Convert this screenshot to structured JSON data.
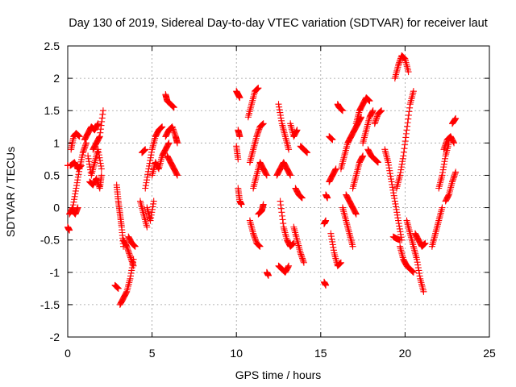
{
  "chart_data": {
    "type": "scatter",
    "title": "Day 130 of 2019, Sidereal Day-to-day VTEC variation (SDTVAR) for receiver laut",
    "xlabel": "GPS time / hours",
    "ylabel": "SDTVAR / TECUs",
    "xlim": [
      0,
      25
    ],
    "ylim": [
      -2,
      2.5
    ],
    "xticks": [
      0,
      5,
      10,
      15,
      20,
      25
    ],
    "yticks": [
      -2,
      -1.5,
      -1,
      -0.5,
      0,
      0.5,
      1,
      1.5,
      2,
      2.5
    ],
    "grid": true,
    "marker": "+",
    "color": "#ff0000",
    "segments": [
      {
        "x": [
          0.0,
          0.0
        ],
        "y": [
          0.65,
          0.65
        ]
      },
      {
        "x": [
          0.0,
          0.1
        ],
        "y": [
          -0.3,
          -0.35
        ]
      },
      {
        "x": [
          0.1,
          0.3,
          0.5,
          0.7,
          0.9,
          1.1
        ],
        "y": [
          -0.1,
          0.0,
          0.3,
          0.6,
          0.85,
          1.0
        ]
      },
      {
        "x": [
          0.2,
          0.35,
          0.5,
          0.7
        ],
        "y": [
          0.9,
          1.1,
          1.15,
          1.1
        ]
      },
      {
        "x": [
          0.15,
          0.4,
          0.6,
          0.8
        ],
        "y": [
          0.65,
          0.7,
          0.6,
          0.65
        ]
      },
      {
        "x": [
          0.3,
          0.45,
          0.6
        ],
        "y": [
          -0.05,
          -0.1,
          0.0
        ]
      },
      {
        "x": [
          1.0,
          1.2,
          1.4,
          1.6,
          1.8
        ],
        "y": [
          1.05,
          1.15,
          1.25,
          1.2,
          1.3
        ]
      },
      {
        "x": [
          1.2,
          1.4,
          1.6,
          1.8,
          2.0
        ],
        "y": [
          0.8,
          0.5,
          0.7,
          0.9,
          0.6
        ]
      },
      {
        "x": [
          1.3,
          1.5,
          1.7,
          1.9,
          2.0
        ],
        "y": [
          0.4,
          0.35,
          0.45,
          0.3,
          0.5
        ]
      },
      {
        "x": [
          1.5,
          1.7,
          1.9,
          2.1
        ],
        "y": [
          0.9,
          1.0,
          1.1,
          1.5
        ]
      },
      {
        "x": [
          2.8,
          3.0
        ],
        "y": [
          -1.2,
          -1.25
        ]
      },
      {
        "x": [
          2.9,
          3.0,
          3.1,
          3.2,
          3.3
        ],
        "y": [
          0.35,
          0.1,
          -0.1,
          -0.3,
          -0.6
        ]
      },
      {
        "x": [
          3.1,
          3.3,
          3.5,
          3.7,
          3.9
        ],
        "y": [
          -1.5,
          -1.4,
          -1.3,
          -1.1,
          -0.8
        ]
      },
      {
        "x": [
          3.3,
          3.5,
          3.7,
          3.9
        ],
        "y": [
          -0.5,
          -0.6,
          -0.75,
          -0.9
        ]
      },
      {
        "x": [
          3.6,
          3.8,
          4.0
        ],
        "y": [
          -0.45,
          -0.55,
          -0.6
        ]
      },
      {
        "x": [
          4.3,
          4.5,
          4.7
        ],
        "y": [
          0.1,
          -0.1,
          -0.3
        ]
      },
      {
        "x": [
          4.4,
          4.6
        ],
        "y": [
          0.85,
          0.9
        ]
      },
      {
        "x": [
          4.6,
          4.8,
          5.0,
          5.2,
          5.4,
          5.6
        ],
        "y": [
          0.3,
          0.6,
          0.9,
          1.1,
          1.2,
          1.25
        ]
      },
      {
        "x": [
          4.7,
          4.9,
          5.1
        ],
        "y": [
          0.0,
          -0.2,
          0.1
        ]
      },
      {
        "x": [
          5.0,
          5.2,
          5.4,
          5.6,
          5.8,
          6.0
        ],
        "y": [
          0.5,
          0.7,
          0.6,
          0.8,
          0.9,
          1.0
        ]
      },
      {
        "x": [
          5.8,
          5.9,
          6.1,
          6.3
        ],
        "y": [
          1.75,
          1.65,
          1.6,
          1.55
        ]
      },
      {
        "x": [
          5.8,
          6.0,
          6.2,
          6.4,
          6.5
        ],
        "y": [
          1.1,
          1.2,
          1.25,
          1.1,
          1.0
        ]
      },
      {
        "x": [
          5.9,
          6.1,
          6.3,
          6.5
        ],
        "y": [
          0.8,
          0.7,
          0.6,
          0.5
        ]
      },
      {
        "x": [
          10.0,
          10.1,
          10.2
        ],
        "y": [
          1.8,
          1.75,
          1.7
        ]
      },
      {
        "x": [
          10.0,
          10.1
        ],
        "y": [
          0.95,
          0.75
        ]
      },
      {
        "x": [
          10.1,
          10.2,
          10.3
        ],
        "y": [
          0.3,
          0.1,
          0.05
        ]
      },
      {
        "x": [
          10.1,
          10.2
        ],
        "y": [
          1.2,
          1.1
        ]
      },
      {
        "x": [
          10.7,
          10.9,
          11.1,
          11.3
        ],
        "y": [
          1.4,
          1.6,
          1.8,
          1.85
        ]
      },
      {
        "x": [
          10.8,
          11.0,
          11.2,
          11.4,
          11.6
        ],
        "y": [
          0.7,
          0.9,
          1.1,
          1.25,
          1.3
        ]
      },
      {
        "x": [
          10.8,
          11.0,
          11.2,
          11.4
        ],
        "y": [
          -0.2,
          -0.4,
          -0.55,
          -0.6
        ]
      },
      {
        "x": [
          11.0,
          11.2,
          11.4,
          11.6,
          11.8
        ],
        "y": [
          0.3,
          0.5,
          0.7,
          0.6,
          0.5
        ]
      },
      {
        "x": [
          11.3,
          11.5,
          11.6
        ],
        "y": [
          -0.1,
          -0.05,
          0.05
        ]
      },
      {
        "x": [
          11.8,
          11.9
        ],
        "y": [
          -1.0,
          -1.05
        ]
      },
      {
        "x": [
          12.5,
          12.7,
          12.9,
          13.1
        ],
        "y": [
          1.6,
          1.3,
          1.1,
          0.9
        ]
      },
      {
        "x": [
          12.4,
          12.6,
          12.8,
          13.0,
          13.2
        ],
        "y": [
          0.5,
          0.6,
          0.7,
          0.6,
          0.5
        ]
      },
      {
        "x": [
          12.5,
          12.7,
          12.9,
          13.1
        ],
        "y": [
          -0.9,
          -0.95,
          -1.0,
          -0.9
        ]
      },
      {
        "x": [
          12.6,
          12.8,
          13.0,
          13.2,
          13.4
        ],
        "y": [
          0.1,
          -0.3,
          -0.5,
          -0.6,
          -0.55
        ]
      },
      {
        "x": [
          13.2,
          13.4,
          13.6
        ],
        "y": [
          1.3,
          1.1,
          1.2
        ]
      },
      {
        "x": [
          13.5,
          13.7,
          13.9
        ],
        "y": [
          0.3,
          0.2,
          0.15
        ]
      },
      {
        "x": [
          13.4,
          13.6,
          13.8,
          14.0
        ],
        "y": [
          -0.3,
          -0.5,
          -0.7,
          -0.85
        ]
      },
      {
        "x": [
          13.8,
          14.0,
          14.2
        ],
        "y": [
          0.95,
          0.9,
          0.85
        ]
      },
      {
        "x": [
          15.2,
          15.3
        ],
        "y": [
          -1.15,
          -1.2
        ]
      },
      {
        "x": [
          15.2,
          15.3
        ],
        "y": [
          -0.25,
          -0.2
        ]
      },
      {
        "x": [
          15.3,
          15.4
        ],
        "y": [
          0.2,
          0.15
        ]
      },
      {
        "x": [
          15.5,
          15.7,
          15.9
        ],
        "y": [
          0.4,
          0.5,
          0.6
        ]
      },
      {
        "x": [
          15.5,
          15.7
        ],
        "y": [
          1.1,
          1.05
        ]
      },
      {
        "x": [
          15.6,
          15.8,
          16.0,
          16.2
        ],
        "y": [
          -0.4,
          -0.7,
          -0.9,
          -0.85
        ]
      },
      {
        "x": [
          16.0,
          16.1,
          16.3
        ],
        "y": [
          1.6,
          1.55,
          1.5
        ]
      },
      {
        "x": [
          16.2,
          16.4,
          16.6,
          16.8,
          17.0,
          17.2,
          17.4
        ],
        "y": [
          0.6,
          0.8,
          1.0,
          1.1,
          1.2,
          1.3,
          1.4
        ]
      },
      {
        "x": [
          16.3,
          16.5,
          16.7,
          16.9
        ],
        "y": [
          0.0,
          -0.2,
          -0.4,
          -0.6
        ]
      },
      {
        "x": [
          16.5,
          16.7,
          16.9,
          17.1
        ],
        "y": [
          0.2,
          0.1,
          0.0,
          -0.1
        ]
      },
      {
        "x": [
          16.9,
          17.1,
          17.3,
          17.5
        ],
        "y": [
          0.3,
          0.5,
          0.7,
          0.8
        ]
      },
      {
        "x": [
          17.1,
          17.3,
          17.5,
          17.7,
          17.9
        ],
        "y": [
          1.3,
          1.5,
          1.6,
          1.7,
          1.65
        ]
      },
      {
        "x": [
          17.5,
          17.7,
          17.9,
          18.1
        ],
        "y": [
          1.0,
          1.2,
          1.4,
          1.5
        ]
      },
      {
        "x": [
          17.8,
          18.0,
          18.2,
          18.4
        ],
        "y": [
          0.9,
          0.8,
          0.75,
          0.7
        ]
      },
      {
        "x": [
          18.2,
          18.4,
          18.6
        ],
        "y": [
          1.3,
          1.45,
          1.5
        ]
      },
      {
        "x": [
          18.8,
          19.0,
          19.2,
          19.4,
          19.6,
          19.8
        ],
        "y": [
          0.9,
          0.7,
          0.4,
          0.1,
          -0.2,
          -0.5
        ]
      },
      {
        "x": [
          19.3,
          19.5,
          19.7
        ],
        "y": [
          -0.45,
          -0.48,
          -0.5
        ]
      },
      {
        "x": [
          19.4,
          19.6,
          19.8,
          20.0,
          20.2
        ],
        "y": [
          2.0,
          2.2,
          2.35,
          2.3,
          2.1
        ]
      },
      {
        "x": [
          19.5,
          19.7,
          19.9,
          20.1,
          20.3,
          20.5
        ],
        "y": [
          0.3,
          0.5,
          0.8,
          1.2,
          1.6,
          1.8
        ]
      },
      {
        "x": [
          19.7,
          19.9,
          20.1,
          20.3,
          20.5
        ],
        "y": [
          -0.6,
          -0.8,
          -0.9,
          -0.95,
          -1.0
        ]
      },
      {
        "x": [
          20.1,
          20.3,
          20.5,
          20.7,
          20.9,
          21.1
        ],
        "y": [
          -0.2,
          -0.4,
          -0.6,
          -0.8,
          -1.1,
          -1.3
        ]
      },
      {
        "x": [
          20.6,
          20.8,
          21.0,
          21.2
        ],
        "y": [
          -0.4,
          -0.5,
          -0.6,
          -0.55
        ]
      },
      {
        "x": [
          21.6,
          21.8,
          22.0,
          22.2
        ],
        "y": [
          -0.6,
          -0.4,
          -0.2,
          0.0
        ]
      },
      {
        "x": [
          22.0,
          22.2,
          22.4,
          22.6
        ],
        "y": [
          0.3,
          0.5,
          0.8,
          1.0
        ]
      },
      {
        "x": [
          22.3,
          22.5,
          22.7,
          22.9
        ],
        "y": [
          0.9,
          1.05,
          1.1,
          1.0
        ]
      },
      {
        "x": [
          22.4,
          22.6,
          22.8,
          23.0
        ],
        "y": [
          0.1,
          0.2,
          0.4,
          0.55
        ]
      },
      {
        "x": [
          22.8,
          23.0
        ],
        "y": [
          1.3,
          1.38
        ]
      }
    ]
  }
}
